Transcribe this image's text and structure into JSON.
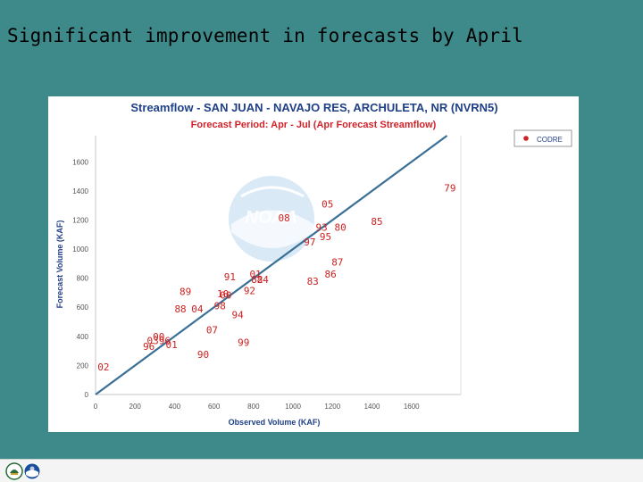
{
  "slide": {
    "title": "Significant improvement in forecasts by April"
  },
  "colors": {
    "background": "#3e8a8a",
    "title_text": "#1f3f87",
    "subtitle_text": "#d2232a",
    "point_label": "#cc2222",
    "one_to_one_line": "#3a6f96",
    "legend_marker": "#cc2222"
  },
  "chart_data": {
    "type": "scatter",
    "title": "Streamflow - SAN JUAN - NAVAJO RES, ARCHULETA, NR (NVRN5)",
    "subtitle": "Forecast Period: Apr - Jul (Apr Forecast Streamflow)",
    "xlabel": "Observed Volume (KAF)",
    "ylabel": "Forecast Volume (KAF)",
    "xlim": [
      0,
      1850
    ],
    "ylim": [
      0,
      1780
    ],
    "x_ticks": [
      "0",
      "200",
      "400",
      "600",
      "800",
      "1000",
      "1200",
      "1400",
      "1600"
    ],
    "x_tick_values": [
      0,
      200,
      400,
      600,
      800,
      1000,
      1200,
      1400,
      1600
    ],
    "y_ticks": [
      "0",
      "200",
      "400",
      "600",
      "800",
      "1000",
      "1200",
      "1400",
      "1600"
    ],
    "y_tick_values": [
      0,
      200,
      400,
      600,
      800,
      1000,
      1200,
      1400,
      1600
    ],
    "grid": false,
    "one_to_one_line": true,
    "legend": {
      "entries": [
        "CODRE"
      ],
      "placement": "top-right"
    },
    "watermark": "NOAA",
    "points": [
      {
        "label": "79",
        "x": 1795,
        "y": 1420
      },
      {
        "label": "05",
        "x": 1175,
        "y": 1310
      },
      {
        "label": "08",
        "x": 955,
        "y": 1215
      },
      {
        "label": "85",
        "x": 1425,
        "y": 1190
      },
      {
        "label": "93",
        "x": 1145,
        "y": 1150
      },
      {
        "label": "80",
        "x": 1240,
        "y": 1150
      },
      {
        "label": "95",
        "x": 1165,
        "y": 1085
      },
      {
        "label": "97",
        "x": 1085,
        "y": 1050
      },
      {
        "label": "87",
        "x": 1225,
        "y": 910
      },
      {
        "label": "86",
        "x": 1190,
        "y": 830
      },
      {
        "label": "01",
        "x": 810,
        "y": 830
      },
      {
        "label": "91",
        "x": 680,
        "y": 810
      },
      {
        "label": "83",
        "x": 1100,
        "y": 780
      },
      {
        "label": "82",
        "x": 818,
        "y": 792
      },
      {
        "label": "84",
        "x": 847,
        "y": 792
      },
      {
        "label": "92",
        "x": 780,
        "y": 715
      },
      {
        "label": "89",
        "x": 455,
        "y": 710
      },
      {
        "label": "10",
        "x": 645,
        "y": 695
      },
      {
        "label": "00",
        "x": 660,
        "y": 685
      },
      {
        "label": "98",
        "x": 630,
        "y": 610
      },
      {
        "label": "88",
        "x": 430,
        "y": 590
      },
      {
        "label": "04",
        "x": 515,
        "y": 590
      },
      {
        "label": "94",
        "x": 720,
        "y": 550
      },
      {
        "label": "07",
        "x": 590,
        "y": 445
      },
      {
        "label": "00",
        "x": 320,
        "y": 400
      },
      {
        "label": "03",
        "x": 290,
        "y": 370
      },
      {
        "label": "96",
        "x": 350,
        "y": 370
      },
      {
        "label": "99",
        "x": 750,
        "y": 360
      },
      {
        "label": "01",
        "x": 385,
        "y": 345
      },
      {
        "label": "96",
        "x": 270,
        "y": 330
      },
      {
        "label": "90",
        "x": 545,
        "y": 275
      },
      {
        "label": "02",
        "x": 40,
        "y": 190
      }
    ]
  }
}
